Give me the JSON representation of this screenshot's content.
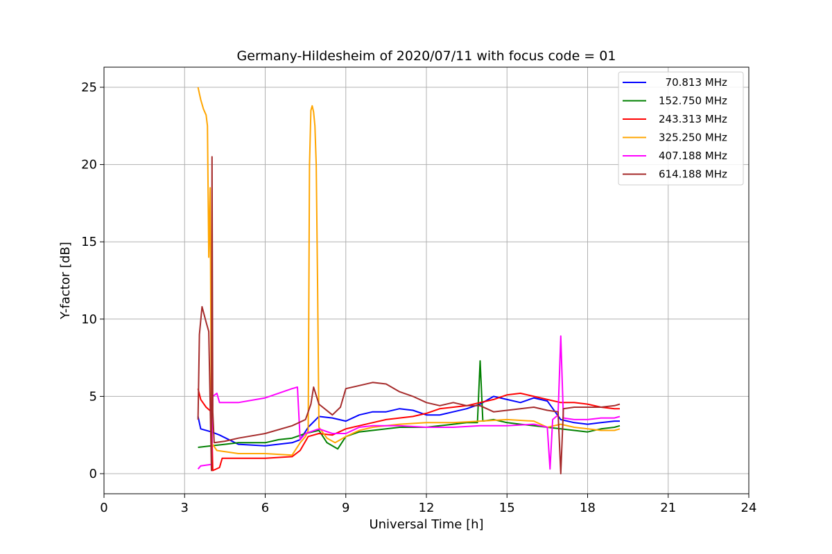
{
  "chart_data": {
    "type": "line",
    "title": "Germany-Hildesheim of 2020/07/11 with focus code = 01",
    "xlabel": "Universal Time [h]",
    "ylabel": "Y-factor [dB]",
    "xlim": [
      0,
      24
    ],
    "ylim": [
      -1.3,
      26.3
    ],
    "xticks": [
      0,
      3,
      6,
      9,
      12,
      15,
      18,
      21,
      24
    ],
    "xtick_labels": [
      "0",
      "3",
      "6",
      "9",
      "12",
      "15",
      "18",
      "21",
      "24"
    ],
    "yticks": [
      0,
      5,
      10,
      15,
      20,
      25
    ],
    "ytick_labels": [
      "0",
      "5",
      "10",
      "15",
      "20",
      "25"
    ],
    "grid": true,
    "legend_position": "top-right",
    "series": [
      {
        "name": "  70.813 MHz",
        "color": "#0000ff",
        "x": [
          3.5,
          3.6,
          4.0,
          4.3,
          5.0,
          6.0,
          7.0,
          7.3,
          7.6,
          8.0,
          8.5,
          9.0,
          9.5,
          10.0,
          10.5,
          11.0,
          11.5,
          12.0,
          12.5,
          13.0,
          13.5,
          14.0,
          14.5,
          15.0,
          15.5,
          16.0,
          16.5,
          17.0,
          17.5,
          18.0,
          18.5,
          19.0,
          19.2
        ],
        "y": [
          3.7,
          2.9,
          2.7,
          2.5,
          1.9,
          1.8,
          2.0,
          2.2,
          3.0,
          3.7,
          3.6,
          3.4,
          3.8,
          4.0,
          4.0,
          4.2,
          4.1,
          3.8,
          3.8,
          4.0,
          4.2,
          4.5,
          5.0,
          4.8,
          4.6,
          4.9,
          4.7,
          3.5,
          3.3,
          3.2,
          3.3,
          3.4,
          3.4
        ]
      },
      {
        "name": "152.750 MHz",
        "color": "#008000",
        "x": [
          3.5,
          4.0,
          4.5,
          5.0,
          6.0,
          6.5,
          7.0,
          7.5,
          8.0,
          8.3,
          8.7,
          9.0,
          9.5,
          10.0,
          10.5,
          11.0,
          11.5,
          12.0,
          12.5,
          13.0,
          13.5,
          13.9,
          14.0,
          14.1,
          14.5,
          15.0,
          15.5,
          16.0,
          16.5,
          17.0,
          17.5,
          18.0,
          18.5,
          19.0,
          19.2
        ],
        "y": [
          1.7,
          1.8,
          1.9,
          2.0,
          2.0,
          2.2,
          2.3,
          2.6,
          2.8,
          2.0,
          1.6,
          2.4,
          2.7,
          2.8,
          2.9,
          3.0,
          3.0,
          3.0,
          3.1,
          3.2,
          3.3,
          3.3,
          7.3,
          3.4,
          3.5,
          3.3,
          3.2,
          3.1,
          3.0,
          2.9,
          2.8,
          2.7,
          2.9,
          3.0,
          3.1
        ]
      },
      {
        "name": "243.313 MHz",
        "color": "#ff0000",
        "x": [
          3.5,
          3.6,
          3.8,
          4.0,
          4.05,
          4.3,
          4.4,
          5.0,
          6.0,
          7.0,
          7.3,
          7.6,
          8.0,
          8.5,
          9.0,
          9.5,
          10.0,
          10.5,
          11.0,
          11.5,
          12.0,
          12.5,
          13.0,
          13.5,
          14.0,
          14.5,
          15.0,
          15.5,
          16.0,
          16.5,
          17.0,
          17.5,
          18.0,
          18.5,
          19.0,
          19.2
        ],
        "y": [
          5.5,
          4.8,
          4.3,
          4.0,
          0.2,
          0.4,
          1.0,
          1.0,
          1.0,
          1.1,
          1.5,
          2.4,
          2.6,
          2.5,
          2.9,
          3.1,
          3.3,
          3.5,
          3.6,
          3.7,
          3.9,
          4.2,
          4.3,
          4.4,
          4.6,
          4.8,
          5.1,
          5.2,
          5.0,
          4.8,
          4.6,
          4.6,
          4.5,
          4.3,
          4.2,
          4.2
        ]
      },
      {
        "name": "325.250 MHz",
        "color": "#ffa500",
        "x": [
          3.5,
          3.6,
          3.7,
          3.8,
          3.85,
          3.9,
          3.95,
          4.0,
          4.2,
          5.0,
          6.0,
          7.0,
          7.3,
          7.5,
          7.6,
          7.65,
          7.7,
          7.75,
          7.8,
          7.85,
          7.9,
          7.95,
          8.0,
          8.3,
          8.6,
          9.0,
          9.5,
          10.0,
          10.5,
          11.0,
          12.0,
          13.0,
          14.0,
          15.0,
          16.0,
          16.5,
          17.0,
          17.5,
          18.0,
          18.5,
          19.0,
          19.2
        ],
        "y": [
          25.0,
          24.2,
          23.6,
          23.2,
          22.5,
          14.0,
          18.5,
          2.0,
          1.5,
          1.3,
          1.3,
          1.2,
          2.0,
          2.4,
          2.8,
          20.0,
          23.5,
          23.8,
          23.4,
          22.5,
          20.0,
          12.0,
          3.0,
          2.3,
          2.0,
          2.4,
          2.8,
          3.0,
          3.1,
          3.2,
          3.3,
          3.3,
          3.4,
          3.5,
          3.4,
          3.0,
          3.2,
          3.0,
          2.9,
          2.8,
          2.8,
          2.9
        ]
      },
      {
        "name": "407.188 MHz",
        "color": "#ff00ff",
        "x": [
          3.5,
          3.6,
          4.0,
          4.05,
          4.2,
          4.3,
          5.0,
          6.0,
          7.0,
          7.2,
          7.3,
          7.5,
          8.0,
          8.5,
          9.0,
          9.5,
          10.0,
          11.0,
          12.0,
          13.0,
          14.0,
          15.0,
          16.0,
          16.5,
          16.6,
          16.7,
          16.9,
          17.0,
          17.1,
          17.5,
          18.0,
          18.5,
          19.0,
          19.2
        ],
        "y": [
          0.3,
          0.5,
          0.6,
          5.0,
          5.2,
          4.6,
          4.6,
          4.9,
          5.5,
          5.6,
          2.2,
          2.6,
          2.9,
          2.6,
          2.6,
          3.0,
          3.1,
          3.1,
          3.0,
          3.0,
          3.1,
          3.1,
          3.2,
          3.0,
          0.3,
          3.5,
          3.8,
          8.9,
          3.6,
          3.5,
          3.5,
          3.6,
          3.6,
          3.7
        ]
      },
      {
        "name": "614.188 MHz",
        "color": "#a52a2a",
        "x": [
          3.5,
          3.55,
          3.65,
          3.8,
          3.9,
          4.0,
          4.02,
          4.05,
          4.1,
          4.5,
          5.0,
          6.0,
          7.0,
          7.5,
          7.7,
          7.8,
          8.0,
          8.5,
          8.8,
          9.0,
          9.5,
          10.0,
          10.5,
          11.0,
          11.5,
          12.0,
          12.5,
          13.0,
          13.5,
          14.0,
          14.5,
          15.0,
          15.5,
          16.0,
          16.5,
          16.9,
          17.0,
          17.1,
          17.5,
          18.0,
          18.5,
          19.0,
          19.2
        ],
        "y": [
          3.5,
          9.0,
          10.8,
          9.8,
          9.2,
          0.2,
          20.5,
          4.0,
          2.0,
          2.1,
          2.3,
          2.6,
          3.1,
          3.5,
          4.5,
          5.6,
          4.5,
          3.8,
          4.3,
          5.5,
          5.7,
          5.9,
          5.8,
          5.3,
          5.0,
          4.6,
          4.4,
          4.6,
          4.4,
          4.4,
          4.0,
          4.1,
          4.2,
          4.3,
          4.1,
          4.0,
          0.0,
          4.2,
          4.3,
          4.3,
          4.3,
          4.4,
          4.5
        ]
      }
    ]
  }
}
